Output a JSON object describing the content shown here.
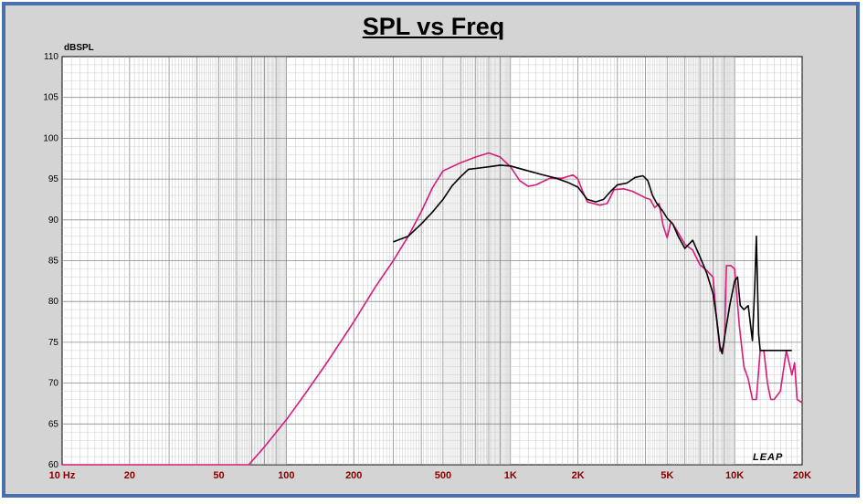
{
  "chart_data": {
    "type": "line",
    "title": "SPL vs Freq",
    "ylabel": "dBSPL",
    "xlabel": "",
    "x_scale": "log",
    "xlim": [
      10,
      20000
    ],
    "ylim": [
      60,
      110
    ],
    "grid": true,
    "y_ticks": [
      "110",
      "105",
      "100",
      "95",
      "90",
      "85",
      "80",
      "75",
      "70",
      "65",
      "60"
    ],
    "x_ticks": [
      {
        "value": 10,
        "label": "10 Hz"
      },
      {
        "value": 20,
        "label": "20"
      },
      {
        "value": 50,
        "label": "50"
      },
      {
        "value": 100,
        "label": "100"
      },
      {
        "value": 200,
        "label": "200"
      },
      {
        "value": 500,
        "label": "500"
      },
      {
        "value": 1000,
        "label": "1K"
      },
      {
        "value": 2000,
        "label": "2K"
      },
      {
        "value": 5000,
        "label": "5K"
      },
      {
        "value": 10000,
        "label": "10K"
      },
      {
        "value": 20000,
        "label": "20K"
      }
    ],
    "logo_text": "LEAP",
    "series": [
      {
        "color": "#d81b7a",
        "points": [
          [
            10,
            60
          ],
          [
            68,
            60
          ],
          [
            80,
            62.2
          ],
          [
            100,
            65.5
          ],
          [
            120,
            68.5
          ],
          [
            150,
            72.3
          ],
          [
            200,
            77.5
          ],
          [
            250,
            81.8
          ],
          [
            300,
            85.0
          ],
          [
            350,
            88.0
          ],
          [
            400,
            91.0
          ],
          [
            450,
            94.0
          ],
          [
            500,
            96.0
          ],
          [
            600,
            97.0
          ],
          [
            700,
            97.7
          ],
          [
            800,
            98.2
          ],
          [
            900,
            97.7
          ],
          [
            1000,
            96.5
          ],
          [
            1100,
            94.8
          ],
          [
            1200,
            94.1
          ],
          [
            1300,
            94.3
          ],
          [
            1500,
            95.1
          ],
          [
            1700,
            95.1
          ],
          [
            1900,
            95.5
          ],
          [
            2000,
            95.0
          ],
          [
            2100,
            93.5
          ],
          [
            2200,
            92.2
          ],
          [
            2500,
            91.8
          ],
          [
            2700,
            92.0
          ],
          [
            2900,
            93.7
          ],
          [
            3200,
            93.8
          ],
          [
            3500,
            93.5
          ],
          [
            4000,
            92.7
          ],
          [
            4200,
            92.5
          ],
          [
            4400,
            91.5
          ],
          [
            4600,
            92.0
          ],
          [
            4800,
            89.3
          ],
          [
            5000,
            87.8
          ],
          [
            5200,
            89.8
          ],
          [
            5500,
            88.8
          ],
          [
            6000,
            87.0
          ],
          [
            6500,
            86.3
          ],
          [
            7000,
            84.5
          ],
          [
            7500,
            83.8
          ],
          [
            8000,
            83.0
          ],
          [
            8300,
            78.0
          ],
          [
            8600,
            73.9
          ],
          [
            8800,
            74.2
          ],
          [
            9000,
            75.0
          ],
          [
            9200,
            84.4
          ],
          [
            9600,
            84.4
          ],
          [
            10000,
            84.0
          ],
          [
            10500,
            77.0
          ],
          [
            11000,
            72.0
          ],
          [
            11500,
            70.5
          ],
          [
            12000,
            68.0
          ],
          [
            12500,
            68.0
          ],
          [
            13000,
            74.0
          ],
          [
            13500,
            74.0
          ],
          [
            14000,
            70.0
          ],
          [
            14500,
            68.0
          ],
          [
            15000,
            68.0
          ],
          [
            16000,
            69.0
          ],
          [
            17000,
            74.0
          ],
          [
            18000,
            71.0
          ],
          [
            18500,
            72.5
          ],
          [
            19000,
            68.0
          ],
          [
            20000,
            67.6
          ]
        ]
      },
      {
        "color": "#000000",
        "points": [
          [
            300,
            87.3
          ],
          [
            350,
            88.0
          ],
          [
            400,
            89.5
          ],
          [
            450,
            91.0
          ],
          [
            500,
            92.5
          ],
          [
            550,
            94.2
          ],
          [
            600,
            95.3
          ],
          [
            650,
            96.2
          ],
          [
            700,
            96.3
          ],
          [
            800,
            96.5
          ],
          [
            900,
            96.7
          ],
          [
            1000,
            96.6
          ],
          [
            1200,
            96.0
          ],
          [
            1400,
            95.5
          ],
          [
            1600,
            95.1
          ],
          [
            1800,
            94.6
          ],
          [
            2000,
            94.0
          ],
          [
            2200,
            92.5
          ],
          [
            2400,
            92.2
          ],
          [
            2600,
            92.5
          ],
          [
            2800,
            93.5
          ],
          [
            3000,
            94.3
          ],
          [
            3300,
            94.5
          ],
          [
            3600,
            95.2
          ],
          [
            3900,
            95.4
          ],
          [
            4100,
            94.8
          ],
          [
            4300,
            93.0
          ],
          [
            4500,
            92.0
          ],
          [
            4800,
            91.0
          ],
          [
            5000,
            90.2
          ],
          [
            5300,
            89.5
          ],
          [
            5600,
            88.0
          ],
          [
            6000,
            86.5
          ],
          [
            6500,
            87.5
          ],
          [
            7000,
            85.5
          ],
          [
            7500,
            83.5
          ],
          [
            8000,
            81.0
          ],
          [
            8300,
            78.0
          ],
          [
            8600,
            74.5
          ],
          [
            8800,
            73.6
          ],
          [
            9000,
            75.5
          ],
          [
            9500,
            79.5
          ],
          [
            10000,
            82.5
          ],
          [
            10300,
            83.0
          ],
          [
            10600,
            79.5
          ],
          [
            11000,
            79.0
          ],
          [
            11500,
            79.5
          ],
          [
            12000,
            75.2
          ],
          [
            12300,
            82.0
          ],
          [
            12500,
            88.0
          ],
          [
            12800,
            76.0
          ],
          [
            13000,
            74.0
          ],
          [
            14000,
            74.0
          ],
          [
            15000,
            74.0
          ],
          [
            16000,
            74.0
          ],
          [
            17000,
            74.0
          ],
          [
            18000,
            74.0
          ]
        ]
      }
    ]
  }
}
